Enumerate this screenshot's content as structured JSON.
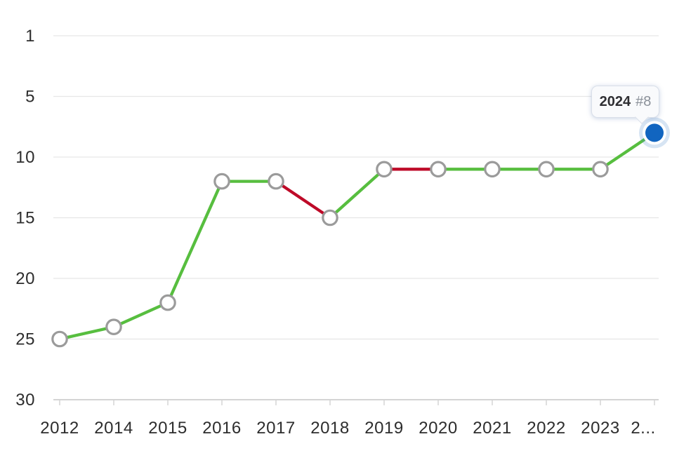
{
  "tooltip": {
    "year": "2024",
    "rank": "#8"
  },
  "colors": {
    "improve_green": "#57BE3F",
    "decline_red": "#BE0A28",
    "highlight_blue": "#1165C0",
    "highlight_halo": "rgba(70,130,200,0.22)",
    "marker_ring": "#9b9b9b",
    "marker_fill": "#ffffff",
    "grid_line": "#e6e6e6",
    "axis_line": "#c6c6c6",
    "tick_mark": "#d4d4d4",
    "label_text": "#2d2d2d"
  },
  "chart_data": {
    "type": "line",
    "title": "",
    "xlabel": "",
    "ylabel": "",
    "x": [
      2012,
      2014,
      2015,
      2016,
      2017,
      2018,
      2019,
      2020,
      2021,
      2022,
      2023,
      2024
    ],
    "x_display_labels": [
      "2012",
      "2014",
      "2015",
      "2016",
      "2017",
      "2018",
      "2019",
      "2020",
      "2021",
      "2022",
      "2023",
      "2..."
    ],
    "series": [
      {
        "name": "ranking",
        "values": [
          25,
          24,
          22,
          12,
          12,
          15,
          11,
          11,
          11,
          11,
          11,
          8
        ]
      }
    ],
    "segment_colors": [
      "green",
      "green",
      "green",
      "green",
      "red",
      "green",
      "red",
      "green",
      "green",
      "green",
      "green"
    ],
    "y_axis": {
      "ticks": [
        1,
        5,
        10,
        15,
        20,
        25,
        30
      ],
      "tick_labels": [
        "1",
        "5",
        "10",
        "15",
        "20",
        "25",
        "30"
      ],
      "inverted": true,
      "grid": true
    },
    "legend": null,
    "highlight": {
      "year": 2024,
      "rank": 8
    }
  }
}
